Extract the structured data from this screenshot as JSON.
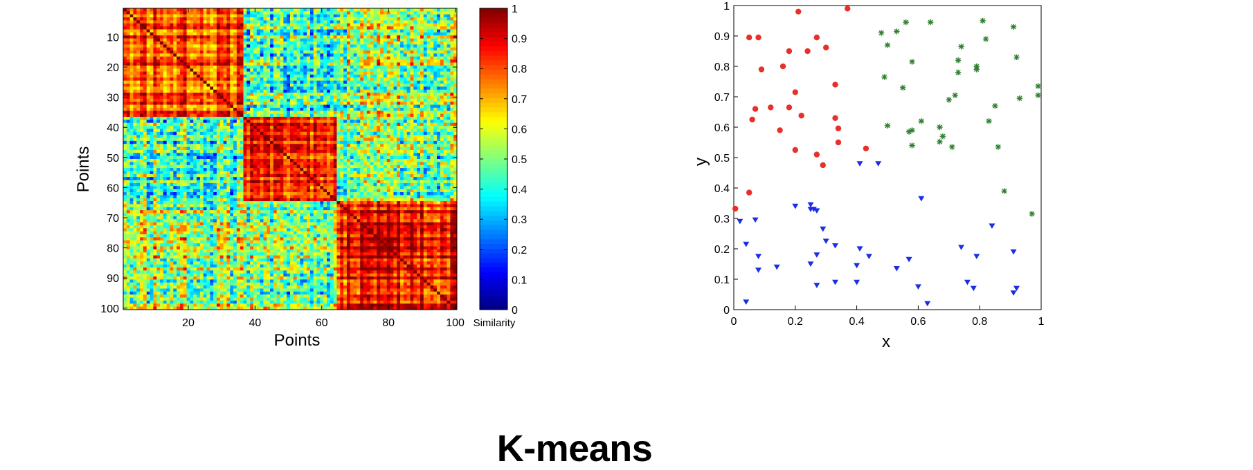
{
  "slide": {
    "title": "K-means"
  },
  "chart_data": [
    {
      "type": "heatmap",
      "xlabel": "Points",
      "ylabel": "Points",
      "x_ticks": [
        20,
        40,
        60,
        80,
        100
      ],
      "y_ticks": [
        10,
        20,
        30,
        40,
        50,
        60,
        70,
        80,
        90,
        100
      ],
      "xlim": [
        1,
        100
      ],
      "ylim": [
        1,
        100
      ],
      "y_direction": "top-to-bottom",
      "n_points": 100,
      "groups": [
        {
          "range": [
            1,
            36
          ],
          "within_similarity": 0.82
        },
        {
          "range": [
            37,
            64
          ],
          "within_similarity": 0.85
        },
        {
          "range": [
            65,
            100
          ],
          "within_similarity": 0.87
        }
      ],
      "between_groups_similarity": [
        {
          "groups": [
            1,
            2
          ],
          "value": 0.45
        },
        {
          "groups": [
            1,
            3
          ],
          "value": 0.55
        },
        {
          "groups": [
            2,
            3
          ],
          "value": 0.5
        }
      ],
      "diagonal_similarity": 1.0,
      "colormap": "jet",
      "colorbar": {
        "label": "Similarity",
        "range": [
          0,
          1
        ],
        "ticks": [
          "0",
          "0.1",
          "0.2",
          "0.3",
          "0.4",
          "0.5",
          "0.6",
          "0.7",
          "0.8",
          "0.9",
          "1"
        ]
      }
    },
    {
      "type": "scatter",
      "xlabel": "x",
      "ylabel": "y",
      "xlim": [
        0,
        1
      ],
      "ylim": [
        0,
        1
      ],
      "x_ticks": [
        "0",
        "0.2",
        "0.4",
        "0.6",
        "0.8",
        "1"
      ],
      "y_ticks": [
        "0",
        "0.1",
        "0.2",
        "0.3",
        "0.4",
        "0.5",
        "0.6",
        "0.7",
        "0.8",
        "0.9",
        "1"
      ],
      "series": [
        {
          "marker": "dot",
          "color": "#e8302a",
          "points": [
            [
              0.21,
              0.98
            ],
            [
              0.37,
              0.99
            ],
            [
              0.05,
              0.895
            ],
            [
              0.08,
              0.895
            ],
            [
              0.27,
              0.895
            ],
            [
              0.18,
              0.85
            ],
            [
              0.24,
              0.85
            ],
            [
              0.3,
              0.862
            ],
            [
              0.09,
              0.79
            ],
            [
              0.16,
              0.8
            ],
            [
              0.33,
              0.74
            ],
            [
              0.2,
              0.715
            ],
            [
              0.07,
              0.66
            ],
            [
              0.12,
              0.665
            ],
            [
              0.18,
              0.665
            ],
            [
              0.06,
              0.625
            ],
            [
              0.22,
              0.638
            ],
            [
              0.33,
              0.63
            ],
            [
              0.15,
              0.59
            ],
            [
              0.34,
              0.596
            ],
            [
              0.34,
              0.55
            ],
            [
              0.2,
              0.525
            ],
            [
              0.43,
              0.53
            ],
            [
              0.27,
              0.51
            ],
            [
              0.29,
              0.475
            ],
            [
              0.05,
              0.385
            ],
            [
              0.005,
              0.332
            ]
          ]
        },
        {
          "marker": "star",
          "color": "#2f7f2f",
          "points": [
            [
              0.48,
              0.91
            ],
            [
              0.53,
              0.915
            ],
            [
              0.56,
              0.945
            ],
            [
              0.64,
              0.945
            ],
            [
              0.81,
              0.95
            ],
            [
              0.91,
              0.93
            ],
            [
              0.5,
              0.87
            ],
            [
              0.74,
              0.865
            ],
            [
              0.82,
              0.89
            ],
            [
              0.58,
              0.815
            ],
            [
              0.73,
              0.82
            ],
            [
              0.79,
              0.8
            ],
            [
              0.92,
              0.83
            ],
            [
              0.79,
              0.79
            ],
            [
              0.73,
              0.78
            ],
            [
              0.49,
              0.765
            ],
            [
              0.55,
              0.73
            ],
            [
              0.99,
              0.735
            ],
            [
              0.72,
              0.705
            ],
            [
              0.7,
              0.69
            ],
            [
              0.93,
              0.695
            ],
            [
              0.99,
              0.705
            ],
            [
              0.85,
              0.67
            ],
            [
              0.5,
              0.605
            ],
            [
              0.61,
              0.62
            ],
            [
              0.83,
              0.62
            ],
            [
              0.58,
              0.59
            ],
            [
              0.57,
              0.585
            ],
            [
              0.67,
              0.6
            ],
            [
              0.68,
              0.57
            ],
            [
              0.67,
              0.552
            ],
            [
              0.58,
              0.54
            ],
            [
              0.71,
              0.535
            ],
            [
              0.86,
              0.535
            ],
            [
              0.88,
              0.39
            ],
            [
              0.97,
              0.315
            ]
          ]
        },
        {
          "marker": "triangle-down",
          "color": "#1a2ee6",
          "points": [
            [
              0.41,
              0.48
            ],
            [
              0.47,
              0.48
            ],
            [
              0.61,
              0.365
            ],
            [
              0.2,
              0.34
            ],
            [
              0.25,
              0.345
            ],
            [
              0.25,
              0.33
            ],
            [
              0.26,
              0.33
            ],
            [
              0.27,
              0.325
            ],
            [
              0.02,
              0.29
            ],
            [
              0.07,
              0.295
            ],
            [
              0.84,
              0.275
            ],
            [
              0.29,
              0.265
            ],
            [
              0.3,
              0.225
            ],
            [
              0.04,
              0.215
            ],
            [
              0.33,
              0.21
            ],
            [
              0.41,
              0.2
            ],
            [
              0.74,
              0.205
            ],
            [
              0.91,
              0.19
            ],
            [
              0.08,
              0.175
            ],
            [
              0.27,
              0.18
            ],
            [
              0.44,
              0.175
            ],
            [
              0.57,
              0.165
            ],
            [
              0.79,
              0.175
            ],
            [
              0.08,
              0.13
            ],
            [
              0.14,
              0.14
            ],
            [
              0.25,
              0.15
            ],
            [
              0.4,
              0.145
            ],
            [
              0.53,
              0.135
            ],
            [
              0.33,
              0.09
            ],
            [
              0.4,
              0.09
            ],
            [
              0.76,
              0.09
            ],
            [
              0.27,
              0.08
            ],
            [
              0.6,
              0.075
            ],
            [
              0.78,
              0.07
            ],
            [
              0.92,
              0.07
            ],
            [
              0.91,
              0.055
            ],
            [
              0.04,
              0.025
            ],
            [
              0.63,
              0.02
            ]
          ]
        }
      ]
    }
  ]
}
